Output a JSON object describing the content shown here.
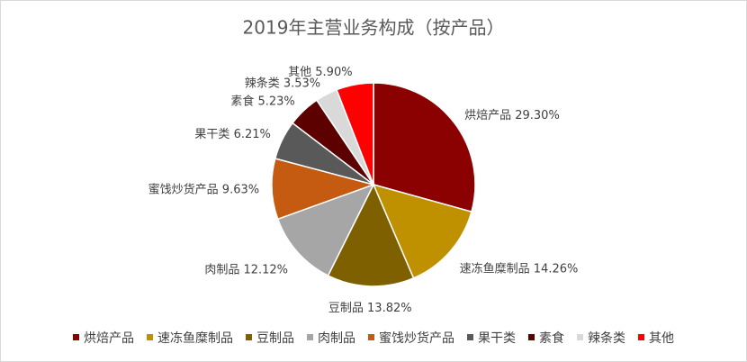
{
  "chart_data": {
    "type": "pie",
    "title": "2019年主营业务构成（按产品）",
    "categories": [
      "烘焙产品",
      "速冻鱼糜制品",
      "豆制品",
      "肉制品",
      "蜜饯炒货产品",
      "果干类",
      "素食",
      "辣条类",
      "其他"
    ],
    "values": [
      29.3,
      14.26,
      13.82,
      12.12,
      9.63,
      6.21,
      5.23,
      3.53,
      5.9
    ],
    "value_labels": [
      "29.30%",
      "14.26%",
      "13.82%",
      "12.12%",
      "9.63%",
      "6.21%",
      "5.23%",
      "3.53%",
      "5.90%"
    ],
    "colors": [
      "#8b0000",
      "#bf9000",
      "#7f6000",
      "#a6a6a6",
      "#c55a11",
      "#595959",
      "#5c0000",
      "#d9d9d9",
      "#ff0000"
    ],
    "legend": "bottom"
  }
}
